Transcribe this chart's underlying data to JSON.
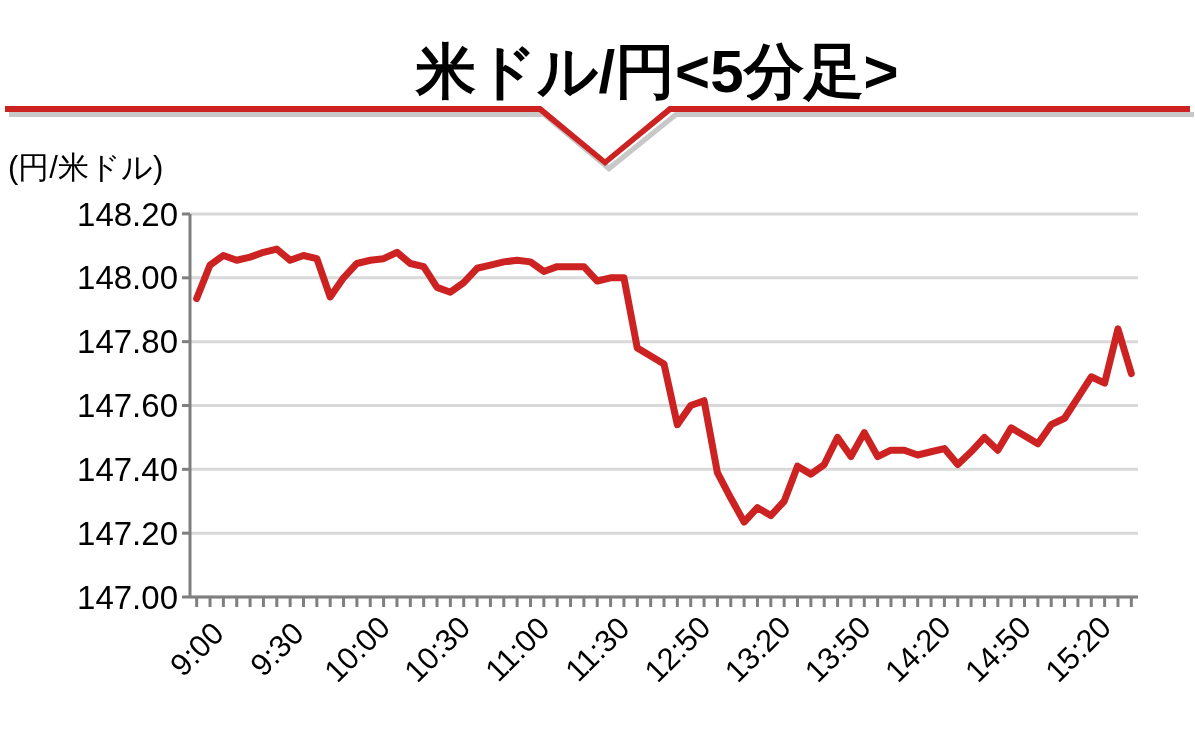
{
  "chart_data": {
    "type": "line",
    "title": "米ドル/円<5分足>",
    "ylabel": "(円/米ドル)",
    "categories": [
      "9:00",
      null,
      null,
      null,
      null,
      null,
      "9:30",
      null,
      null,
      null,
      null,
      null,
      "10:00",
      null,
      null,
      null,
      null,
      null,
      "10:30",
      null,
      null,
      null,
      null,
      null,
      "11:00",
      null,
      null,
      null,
      null,
      null,
      "11:30",
      null,
      null,
      null,
      null,
      null,
      "12:50",
      null,
      null,
      null,
      null,
      null,
      "13:20",
      null,
      null,
      null,
      null,
      null,
      "13:50",
      null,
      null,
      null,
      null,
      null,
      "14:20",
      null,
      null,
      null,
      null,
      null,
      "14:50",
      null,
      null,
      null,
      null,
      null,
      "15:20",
      null,
      null,
      null,
      null
    ],
    "series": [
      {
        "color": "#cc2222",
        "values": [
          147.935,
          148.04,
          148.07,
          148.055,
          148.065,
          148.08,
          148.09,
          148.055,
          148.07,
          148.06,
          147.94,
          148.0,
          148.045,
          148.055,
          148.06,
          148.08,
          148.045,
          148.035,
          147.97,
          147.955,
          147.985,
          148.03,
          148.04,
          148.05,
          148.055,
          148.05,
          148.02,
          148.035,
          148.035,
          148.035,
          147.99,
          148.0,
          148.0,
          147.78,
          147.755,
          147.73,
          147.54,
          147.6,
          147.615,
          147.39,
          147.31,
          147.235,
          147.28,
          147.255,
          147.3,
          147.41,
          147.385,
          147.415,
          147.5,
          147.44,
          147.515,
          147.44,
          147.46,
          147.46,
          147.445,
          147.455,
          147.465,
          147.415,
          147.455,
          147.5,
          147.46,
          147.53,
          147.505,
          147.48,
          147.54,
          147.56,
          147.625,
          147.69,
          147.67,
          147.84,
          147.7
        ]
      }
    ],
    "ylim": [
      147.0,
      148.2
    ],
    "yticks": [
      {
        "value": 147.0,
        "label": "147.00"
      },
      {
        "value": 147.2,
        "label": "147.20"
      },
      {
        "value": 147.4,
        "label": "147.40"
      },
      {
        "value": 147.6,
        "label": "147.60"
      },
      {
        "value": 147.8,
        "label": "147.80"
      },
      {
        "value": 148.0,
        "label": "148.00"
      },
      {
        "value": 148.2,
        "label": "148.20"
      }
    ],
    "grid": "y",
    "marker": "none",
    "line_style": "solid"
  }
}
